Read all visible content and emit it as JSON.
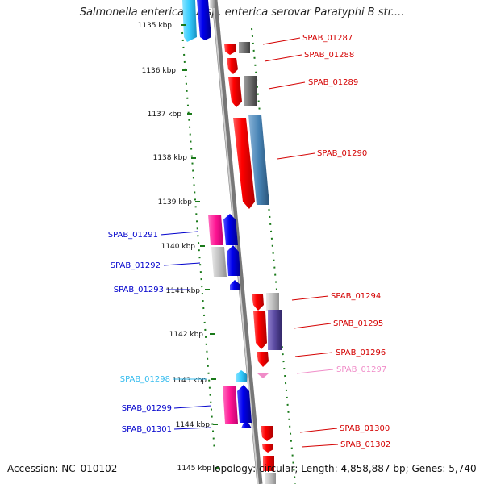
{
  "title": "Salmonella enterica subsp. enterica serovar Paratyphi B str....",
  "footer": {
    "accession": "Accession: NC_010102",
    "topology": "Topology: circular; Length: 4,858,887 bp; Genes: 5,740"
  },
  "ticks": [
    "1135 kbp",
    "1136 kbp",
    "1137 kbp",
    "1138 kbp",
    "1139 kbp",
    "1140 kbp",
    "1141 kbp",
    "1142 kbp",
    "1143 kbp",
    "1144 kbp",
    "1145 kbp"
  ],
  "genes_forward": [
    {
      "label": "SPAB_01287",
      "color": "#d40000"
    },
    {
      "label": "SPAB_01288",
      "color": "#d40000"
    },
    {
      "label": "SPAB_01289",
      "color": "#d40000"
    },
    {
      "label": "SPAB_01290",
      "color": "#d40000"
    },
    {
      "label": "SPAB_01294",
      "color": "#d40000"
    },
    {
      "label": "SPAB_01295",
      "color": "#d40000"
    },
    {
      "label": "SPAB_01296",
      "color": "#d40000"
    },
    {
      "label": "SPAB_01297",
      "color": "#f08cc8"
    },
    {
      "label": "SPAB_01300",
      "color": "#d40000"
    },
    {
      "label": "SPAB_01302",
      "color": "#d40000"
    }
  ],
  "genes_reverse": [
    {
      "label": "SPAB_01291",
      "color": "#0000cc"
    },
    {
      "label": "SPAB_01292",
      "color": "#0000cc"
    },
    {
      "label": "SPAB_01293",
      "color": "#0000cc"
    },
    {
      "label": "SPAB_01298",
      "color": "#33bbee"
    },
    {
      "label": "SPAB_01299",
      "color": "#0000cc"
    },
    {
      "label": "SPAB_01301",
      "color": "#0000cc"
    }
  ],
  "colors": {
    "backbone": "#888888",
    "tick": "#1a7a1a",
    "forward_cds": "#ff0000",
    "reverse_cds": "#0000ee",
    "rna": "#ff1493",
    "pseudo": "#c8c8c8",
    "cog_blue": "#4682b4",
    "cog_grey": "#707070",
    "cog_purple": "#5a4aa0",
    "cyan": "#33ccff"
  }
}
